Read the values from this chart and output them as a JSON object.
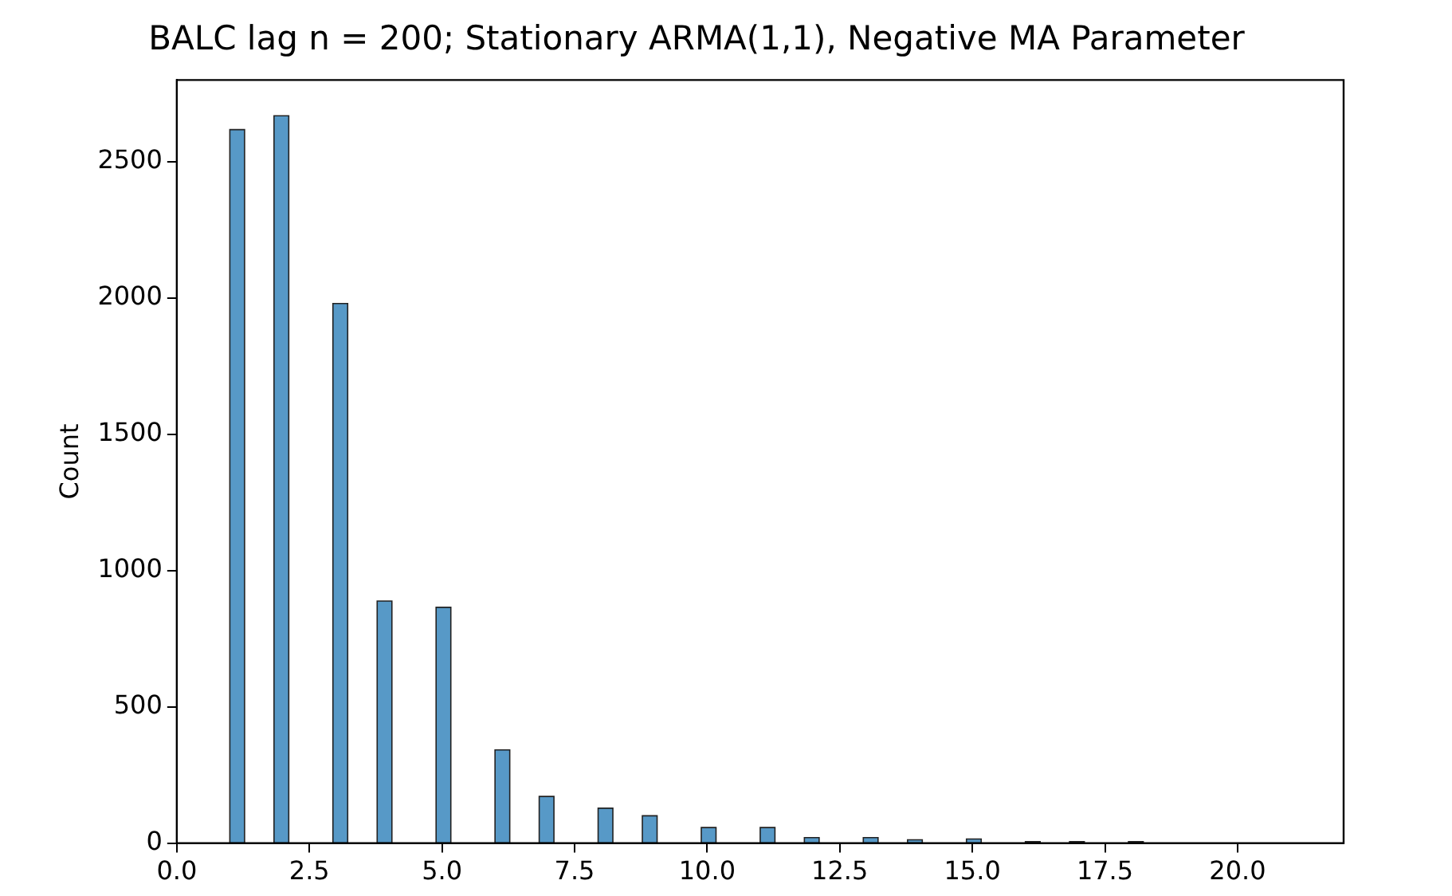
{
  "chart_data": {
    "type": "histogram",
    "title": "BALC lag n = 200; Stationary ARMA(1,1), Negative MA Parameter",
    "ylabel": "Count",
    "color": "#5799c7",
    "bins": [
      1,
      1.278,
      1.833,
      2.111,
      2.944,
      3.222,
      3.778,
      4.056,
      4.889,
      5.167,
      6,
      6.278,
      6.833,
      7.111,
      7.944,
      8.222,
      8.778,
      9.056,
      9.889,
      10.167,
      11,
      11.278,
      11.833,
      12.111,
      12.944,
      13.222,
      13.778,
      14.056,
      14.889,
      15.167,
      16,
      16.278,
      16.833,
      17.111,
      17.944,
      18.222
    ],
    "values": [
      2618,
      0,
      2669,
      0,
      1980,
      0,
      888,
      0,
      865,
      0,
      342,
      0,
      171,
      0,
      128,
      0,
      100,
      0,
      57,
      0,
      57,
      0,
      20,
      0,
      20,
      0,
      12,
      0,
      15,
      0,
      5,
      0,
      5,
      0,
      5
    ],
    "xlim": [
      0,
      22
    ],
    "xticks": [
      {
        "value": 0,
        "label": "0.0"
      },
      {
        "value": 2.5,
        "label": "2.5"
      },
      {
        "value": 5,
        "label": "5.0"
      },
      {
        "value": 7.5,
        "label": "7.5"
      },
      {
        "value": 10,
        "label": "10.0"
      },
      {
        "value": 12.5,
        "label": "12.5"
      },
      {
        "value": 15,
        "label": "15.0"
      },
      {
        "value": 17.5,
        "label": "17.5"
      },
      {
        "value": 20,
        "label": "20.0"
      }
    ],
    "ylim": [
      0,
      2800
    ],
    "yticks": [
      0,
      500,
      1000,
      1500,
      2000,
      2500
    ],
    "grid": false,
    "legend": false
  }
}
